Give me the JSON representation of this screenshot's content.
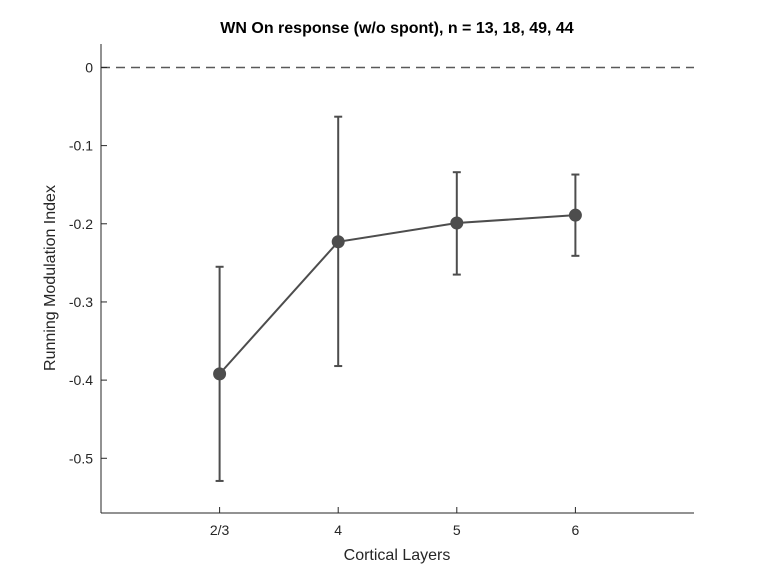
{
  "chart_data": {
    "type": "line",
    "title": "WN On response (w/o spont), n = 13, 18, 49, 44",
    "xlabel": "Cortical Layers",
    "ylabel": "Running Modulation Index",
    "categories": [
      "2/3",
      "4",
      "5",
      "6"
    ],
    "y_ticks": [
      0,
      -0.1,
      -0.2,
      -0.3,
      -0.4,
      -0.5
    ],
    "y_tick_labels": [
      "0",
      "-0.1",
      "-0.2",
      "-0.3",
      "-0.4",
      "-0.5"
    ],
    "ylim": [
      -0.57,
      0.03
    ],
    "xlim": [
      0,
      5
    ],
    "grid": false,
    "series": [
      {
        "values": [
          -0.392,
          -0.223,
          -0.199,
          -0.189
        ],
        "error_upper": [
          -0.255,
          -0.063,
          -0.134,
          -0.137
        ],
        "error_lower": [
          -0.529,
          -0.382,
          -0.265,
          -0.241
        ],
        "color": "#4d4d4d"
      }
    ],
    "reference_line": {
      "y": 0,
      "style": "dashed",
      "color": "#595959"
    },
    "axis_color": "#262626"
  }
}
